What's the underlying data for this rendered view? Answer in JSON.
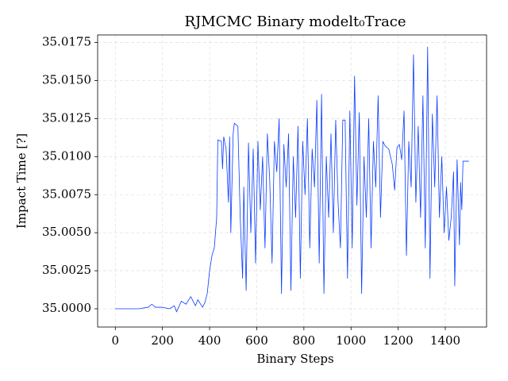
{
  "chart_data": {
    "type": "line",
    "title": "RJMCMC Binary modelt₀Trace",
    "xlabel": "Binary Steps",
    "ylabel": "Impact Time [?]",
    "color": "#0a3cff",
    "grid": true,
    "xlim": [
      -75,
      1575
    ],
    "xticks": [
      0,
      200,
      400,
      600,
      800,
      1000,
      1200,
      1400
    ],
    "ylim": [
      34.9988,
      35.018
    ],
    "yticks": [
      {
        "value": 35.0,
        "label": "35.0000"
      },
      {
        "value": 35.0025,
        "label": "35.0025"
      },
      {
        "value": 35.005,
        "label": "35.0050"
      },
      {
        "value": 35.0075,
        "label": "35.0075"
      },
      {
        "value": 35.01,
        "label": "35.0100"
      },
      {
        "value": 35.0125,
        "label": "35.0125"
      },
      {
        "value": 35.015,
        "label": "35.0150"
      },
      {
        "value": 35.0175,
        "label": "35.0175"
      }
    ],
    "x": [
      0,
      50,
      100,
      140,
      155,
      170,
      200,
      230,
      250,
      260,
      280,
      300,
      320,
      340,
      350,
      370,
      380,
      390,
      400,
      410,
      420,
      430,
      435,
      450,
      455,
      460,
      470,
      480,
      485,
      490,
      500,
      505,
      520,
      530,
      540,
      545,
      555,
      565,
      575,
      585,
      595,
      605,
      615,
      625,
      635,
      645,
      655,
      665,
      675,
      685,
      695,
      705,
      715,
      725,
      735,
      745,
      755,
      765,
      775,
      785,
      795,
      805,
      815,
      825,
      835,
      845,
      855,
      865,
      875,
      885,
      895,
      905,
      915,
      925,
      935,
      945,
      955,
      965,
      975,
      985,
      995,
      1005,
      1015,
      1025,
      1035,
      1045,
      1055,
      1065,
      1075,
      1085,
      1095,
      1105,
      1115,
      1125,
      1135,
      1145,
      1160,
      1175,
      1185,
      1195,
      1205,
      1215,
      1225,
      1235,
      1245,
      1255,
      1265,
      1275,
      1285,
      1295,
      1305,
      1315,
      1325,
      1335,
      1345,
      1355,
      1365,
      1375,
      1385,
      1395,
      1405,
      1415,
      1425,
      1435,
      1440,
      1450,
      1460,
      1465,
      1470,
      1475,
      1500
    ],
    "values": [
      35.0,
      35.0,
      35.0,
      35.0001,
      35.0003,
      35.0001,
      35.0001,
      35.0,
      35.0002,
      34.9998,
      35.0005,
      35.0003,
      35.0008,
      35.0002,
      35.0006,
      35.0001,
      35.0004,
      35.001,
      35.0025,
      35.0035,
      35.004,
      35.006,
      35.0111,
      35.011,
      35.0092,
      35.0113,
      35.0105,
      35.007,
      35.0113,
      35.005,
      35.0115,
      35.0122,
      35.012,
      35.006,
      35.002,
      35.008,
      35.0012,
      35.0109,
      35.005,
      35.0105,
      35.003,
      35.011,
      35.0065,
      35.01,
      35.004,
      35.0115,
      35.0085,
      35.003,
      35.011,
      35.009,
      35.0125,
      35.001,
      35.0108,
      35.008,
      35.0115,
      35.0012,
      35.01,
      35.006,
      35.012,
      35.002,
      35.011,
      35.0075,
      35.0125,
      35.004,
      35.0105,
      35.008,
      35.0137,
      35.003,
      35.0141,
      35.001,
      35.01,
      35.006,
      35.0115,
      35.005,
      35.0124,
      35.007,
      35.004,
      35.0124,
      35.0124,
      35.002,
      35.013,
      35.004,
      35.0153,
      35.0068,
      35.0129,
      35.001,
      35.01,
      35.006,
      35.0125,
      35.004,
      35.011,
      35.008,
      35.014,
      35.006,
      35.011,
      35.0107,
      35.0105,
      35.0095,
      35.0078,
      35.0106,
      35.0108,
      35.0098,
      35.013,
      35.0035,
      35.011,
      35.008,
      35.0167,
      35.007,
      35.012,
      35.006,
      35.014,
      35.004,
      35.0172,
      35.002,
      35.0128,
      35.008,
      35.014,
      35.006,
      35.01,
      35.005,
      35.008,
      35.0045,
      35.006,
      35.009,
      35.0015,
      35.0098,
      35.0042,
      35.0083,
      35.0065,
      35.0097,
      35.0097
    ]
  }
}
